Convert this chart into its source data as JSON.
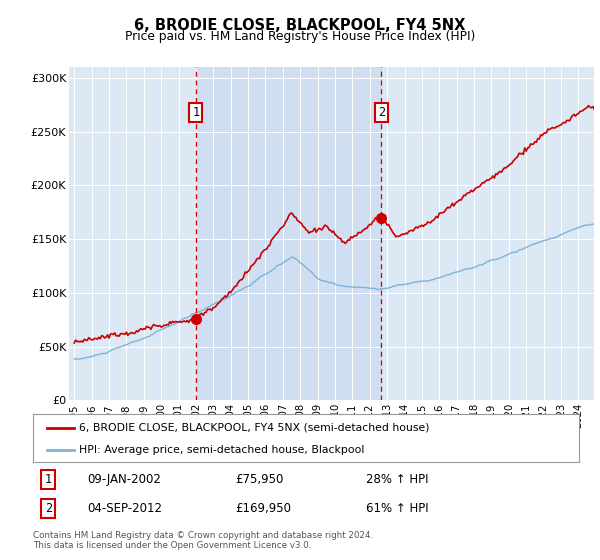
{
  "title": "6, BRODIE CLOSE, BLACKPOOL, FY4 5NX",
  "subtitle": "Price paid vs. HM Land Registry's House Price Index (HPI)",
  "plot_bg_color": "#dce9f5",
  "red_line_label": "6, BRODIE CLOSE, BLACKPOOL, FY4 5NX (semi-detached house)",
  "blue_line_label": "HPI: Average price, semi-detached house, Blackpool",
  "marker1_year": 2002.04,
  "marker1_value": 75950,
  "marker1_date_str": "09-JAN-2002",
  "marker1_price_str": "£75,950",
  "marker1_hpi_pct": "28% ↑ HPI",
  "marker2_year": 2012.67,
  "marker2_value": 169950,
  "marker2_date_str": "04-SEP-2012",
  "marker2_price_str": "£169,950",
  "marker2_hpi_pct": "61% ↑ HPI",
  "footer": "Contains HM Land Registry data © Crown copyright and database right 2024.\nThis data is licensed under the Open Government Licence v3.0.",
  "ylim": [
    0,
    310000
  ],
  "yticks": [
    0,
    50000,
    100000,
    150000,
    200000,
    250000,
    300000
  ],
  "ytick_labels": [
    "£0",
    "£50K",
    "£100K",
    "£150K",
    "£200K",
    "£250K",
    "£300K"
  ],
  "xstart": 1995,
  "xend": 2024,
  "shade_color": "#c8d8f0",
  "vline_color": "#cc0000",
  "red_color": "#cc0000",
  "blue_color": "#7fb3d9"
}
